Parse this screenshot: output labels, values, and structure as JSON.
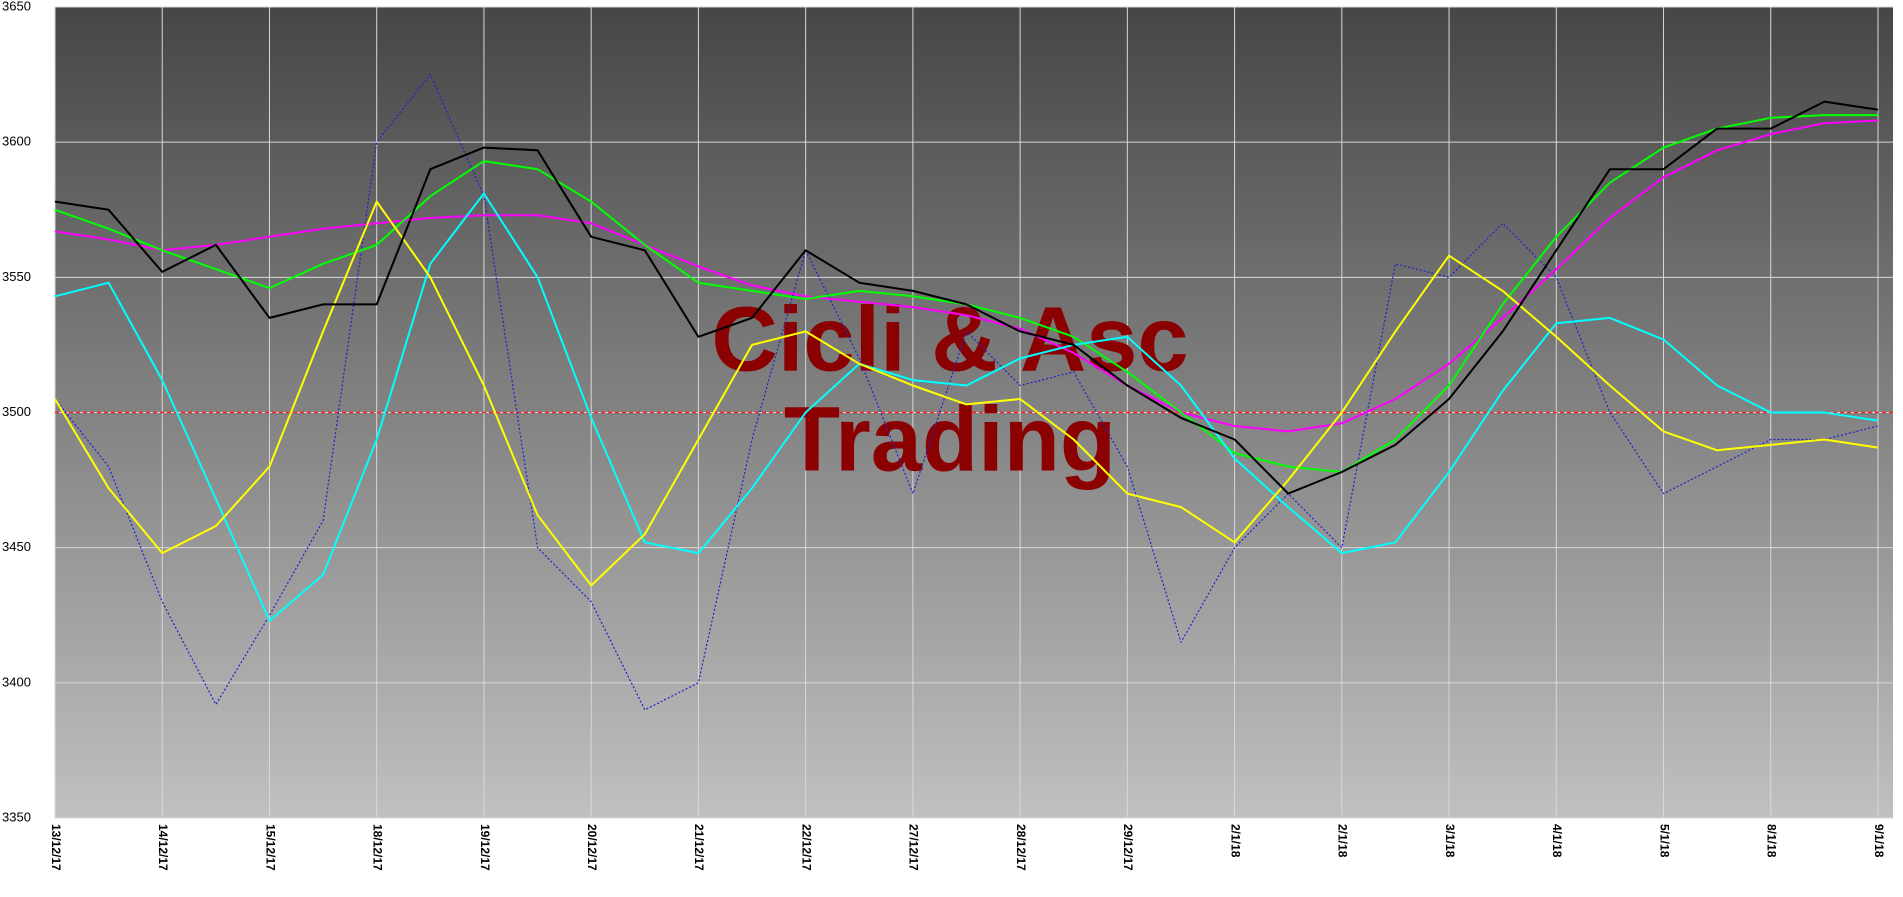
{
  "chart_data": {
    "type": "line",
    "annotations": [
      "Cicli & Asc",
      "Trading"
    ],
    "x": [
      0,
      0.5,
      1,
      1.5,
      2,
      2.5,
      3,
      3.5,
      4,
      4.5,
      5,
      5.5,
      6,
      6.5,
      7,
      7.5,
      8,
      8.5,
      9,
      9.5,
      10,
      10.5,
      11,
      11.5,
      12,
      12.5,
      13,
      13.5,
      14,
      14.5,
      15,
      15.5,
      16,
      16.5,
      17
    ],
    "xlim": [
      0,
      17.14
    ],
    "xticks": [
      {
        "value": 0,
        "label": "13/12/17"
      },
      {
        "value": 1,
        "label": "14/12/17"
      },
      {
        "value": 2,
        "label": "15/12/17"
      },
      {
        "value": 3,
        "label": "18/12/17"
      },
      {
        "value": 4,
        "label": "19/12/17"
      },
      {
        "value": 5,
        "label": "20/12/17"
      },
      {
        "value": 6,
        "label": "21/12/17"
      },
      {
        "value": 7,
        "label": "22/12/17"
      },
      {
        "value": 8,
        "label": "27/12/17"
      },
      {
        "value": 9,
        "label": "28/12/17"
      },
      {
        "value": 10,
        "label": "29/12/17"
      },
      {
        "value": 11,
        "label": "2/1/18"
      },
      {
        "value": 12,
        "label": "2/1/18"
      },
      {
        "value": 13,
        "label": "3/1/18"
      },
      {
        "value": 14,
        "label": "4/1/18"
      },
      {
        "value": 15,
        "label": "5/1/18"
      },
      {
        "value": 16,
        "label": "8/1/18"
      },
      {
        "value": 17,
        "label": "9/1/18"
      }
    ],
    "ylim": [
      3350,
      3650
    ],
    "yticks": [
      3350,
      3400,
      3450,
      3500,
      3550,
      3600,
      3650
    ],
    "grid": true,
    "reference_line": {
      "value": 3500,
      "color": "#ff2020",
      "dash": true
    },
    "series": [
      {
        "color": "#2020d0",
        "dash": true,
        "values": [
          3505,
          3480,
          3430,
          3392,
          3425,
          3460,
          3600,
          3625,
          3580,
          3450,
          3430,
          3390,
          3400,
          3490,
          3560,
          3520,
          3470,
          3530,
          3510,
          3515,
          3480,
          3415,
          3450,
          3470,
          3450,
          3555,
          3550,
          3570,
          3550,
          3500,
          3470,
          3480,
          3490,
          3490,
          3495
        ]
      },
      {
        "color": "#ff00ff",
        "values": [
          3567,
          3564,
          3560,
          3562,
          3565,
          3568,
          3570,
          3572,
          3573,
          3573,
          3570,
          3562,
          3554,
          3547,
          3543,
          3541,
          3539,
          3536,
          3531,
          3522,
          3510,
          3500,
          3495,
          3493,
          3496,
          3505,
          3518,
          3535,
          3553,
          3572,
          3587,
          3597,
          3603,
          3607,
          3608
        ]
      },
      {
        "color": "#00ff00",
        "values": [
          3575,
          3568,
          3560,
          3553,
          3546,
          3555,
          3562,
          3580,
          3593,
          3590,
          3578,
          3562,
          3548,
          3545,
          3542,
          3545,
          3543,
          3540,
          3535,
          3528,
          3515,
          3500,
          3485,
          3480,
          3478,
          3490,
          3510,
          3540,
          3565,
          3585,
          3598,
          3605,
          3609,
          3610,
          3610
        ]
      },
      {
        "color": "#00ffff",
        "values": [
          3543,
          3548,
          3512,
          3468,
          3423,
          3440,
          3490,
          3555,
          3581,
          3550,
          3498,
          3452,
          3448,
          3472,
          3500,
          3518,
          3512,
          3510,
          3520,
          3525,
          3528,
          3510,
          3483,
          3465,
          3448,
          3452,
          3478,
          3508,
          3533,
          3535,
          3527,
          3510,
          3500,
          3500,
          3497
        ]
      },
      {
        "color": "#ffff00",
        "values": [
          3505,
          3472,
          3448,
          3458,
          3480,
          3530,
          3578,
          3550,
          3510,
          3462,
          3436,
          3455,
          3490,
          3525,
          3530,
          3518,
          3510,
          3503,
          3505,
          3490,
          3470,
          3465,
          3452,
          3475,
          3500,
          3530,
          3558,
          3545,
          3528,
          3510,
          3493,
          3486,
          3488,
          3490,
          3487
        ]
      },
      {
        "color": "#000000",
        "values": [
          3578,
          3575,
          3552,
          3562,
          3535,
          3540,
          3540,
          3590,
          3598,
          3597,
          3565,
          3560,
          3528,
          3535,
          3560,
          3548,
          3545,
          3540,
          3530,
          3525,
          3510,
          3498,
          3490,
          3470,
          3478,
          3488,
          3505,
          3530,
          3560,
          3590,
          3590,
          3605,
          3605,
          3615,
          3612
        ]
      }
    ]
  }
}
